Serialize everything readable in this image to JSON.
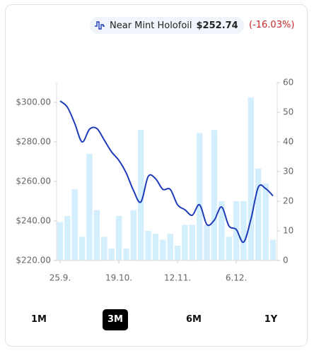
{
  "header": {
    "condition": "Near Mint Holofoil",
    "price": "$252.74",
    "change": "(-16.03%)"
  },
  "chart_data": {
    "type": "line",
    "x": [
      0,
      1,
      2,
      3,
      4,
      5,
      6,
      7,
      8,
      9,
      10,
      11,
      12,
      13,
      14,
      15,
      16,
      17,
      18,
      19,
      20,
      21,
      22,
      23,
      24,
      25,
      26,
      27,
      28,
      29
    ],
    "xlim": [
      0,
      29
    ],
    "xticks": [
      {
        "value": 0,
        "label": "25.9."
      },
      {
        "value": 8,
        "label": "19.10."
      },
      {
        "value": 16,
        "label": "12.11."
      },
      {
        "value": 24,
        "label": "6.12."
      }
    ],
    "ylim": [
      220,
      310
    ],
    "yticks": [
      {
        "value": 220,
        "label": "$220.00"
      },
      {
        "value": 240,
        "label": "$240.00"
      },
      {
        "value": 260,
        "label": "$260.00"
      },
      {
        "value": 280,
        "label": "$280.00"
      },
      {
        "value": 300,
        "label": "$300.00"
      }
    ],
    "y2lim": [
      0,
      60
    ],
    "y2ticks": [
      0,
      10,
      20,
      30,
      40,
      50,
      60
    ],
    "series": [
      {
        "type": "line",
        "color": "#1e3bb8",
        "axis": "y",
        "values": [
          300.7,
          297.5,
          289.3,
          280,
          286.4,
          286.8,
          281,
          275,
          270.7,
          264.3,
          255.4,
          249.6,
          262.5,
          261.4,
          256,
          256,
          248.2,
          245.7,
          242.9,
          248.2,
          238.2,
          240.4,
          247.1,
          237.5,
          235.7,
          229.3,
          241,
          257.1,
          256.4,
          252.7
        ]
      },
      {
        "type": "bar",
        "color": "#d3eefc",
        "axis": "y2",
        "values": [
          13,
          15,
          24,
          8,
          36,
          17,
          8,
          4,
          15,
          4,
          17,
          44,
          10,
          9,
          7,
          9,
          5,
          12,
          12,
          43,
          12,
          44,
          20,
          8,
          20,
          20,
          55,
          31,
          26,
          7
        ]
      }
    ]
  },
  "range_buttons": [
    "1M",
    "3M",
    "6M",
    "1Y"
  ],
  "selected_button": 1
}
